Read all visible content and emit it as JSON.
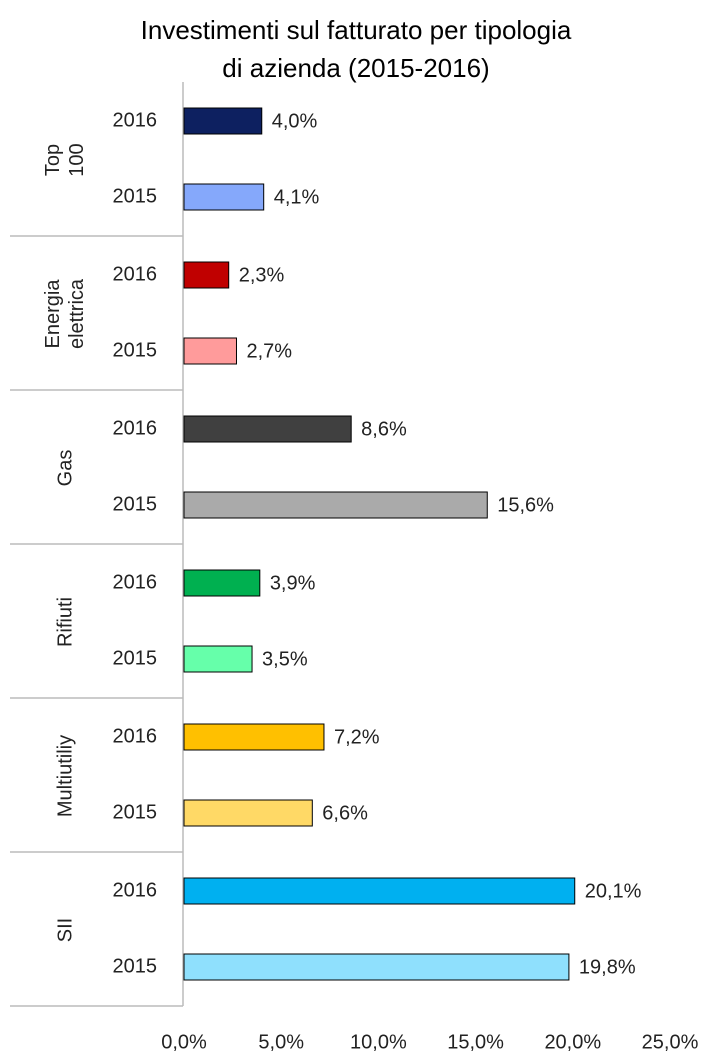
{
  "chart_data": {
    "type": "grouped-bar-horizontal",
    "title": [
      "Investimenti sul fatturato per tipologia",
      "di azienda (2015-2016)"
    ],
    "groups": [
      {
        "name": "Top 100",
        "categories": [
          "2016",
          "2015"
        ],
        "values": [
          4.0,
          4.1
        ],
        "value_labels": [
          "4,0%",
          "4,1%"
        ],
        "colors": [
          "#0d2060",
          "#85a8fb"
        ]
      },
      {
        "name": "Energia elettrica",
        "categories": [
          "2016",
          "2015"
        ],
        "values": [
          2.3,
          2.7
        ],
        "value_labels": [
          "2,3%",
          "2,7%"
        ],
        "colors": [
          "#c00000",
          "#ff9b9b"
        ]
      },
      {
        "name": "Gas",
        "categories": [
          "2016",
          "2015"
        ],
        "values": [
          8.6,
          15.6
        ],
        "value_labels": [
          "8,6%",
          "15,6%"
        ],
        "colors": [
          "#404040",
          "#aaaaaa"
        ]
      },
      {
        "name": "Rifiuti",
        "categories": [
          "2016",
          "2015"
        ],
        "values": [
          3.9,
          3.5
        ],
        "value_labels": [
          "3,9%",
          "3,5%"
        ],
        "colors": [
          "#00b050",
          "#66ffaa"
        ]
      },
      {
        "name": "Multiutiliy",
        "categories": [
          "2016",
          "2015"
        ],
        "values": [
          7.2,
          6.6
        ],
        "value_labels": [
          "7,2%",
          "6,6%"
        ],
        "colors": [
          "#ffc000",
          "#ffd966"
        ]
      },
      {
        "name": "SII",
        "categories": [
          "2016",
          "2015"
        ],
        "values": [
          20.1,
          19.8
        ],
        "value_labels": [
          "20,1%",
          "19,8%"
        ],
        "colors": [
          "#00b0f0",
          "#8fe0fd"
        ]
      }
    ],
    "xlim": [
      0,
      25
    ],
    "xticks": [
      {
        "value": 0,
        "label": "0,0%"
      },
      {
        "value": 5,
        "label": "5,0%"
      },
      {
        "value": 10,
        "label": "10,0%"
      },
      {
        "value": 15,
        "label": "15,0%"
      },
      {
        "value": 20,
        "label": "20,0%"
      },
      {
        "value": 25,
        "label": "25,0%"
      }
    ]
  }
}
